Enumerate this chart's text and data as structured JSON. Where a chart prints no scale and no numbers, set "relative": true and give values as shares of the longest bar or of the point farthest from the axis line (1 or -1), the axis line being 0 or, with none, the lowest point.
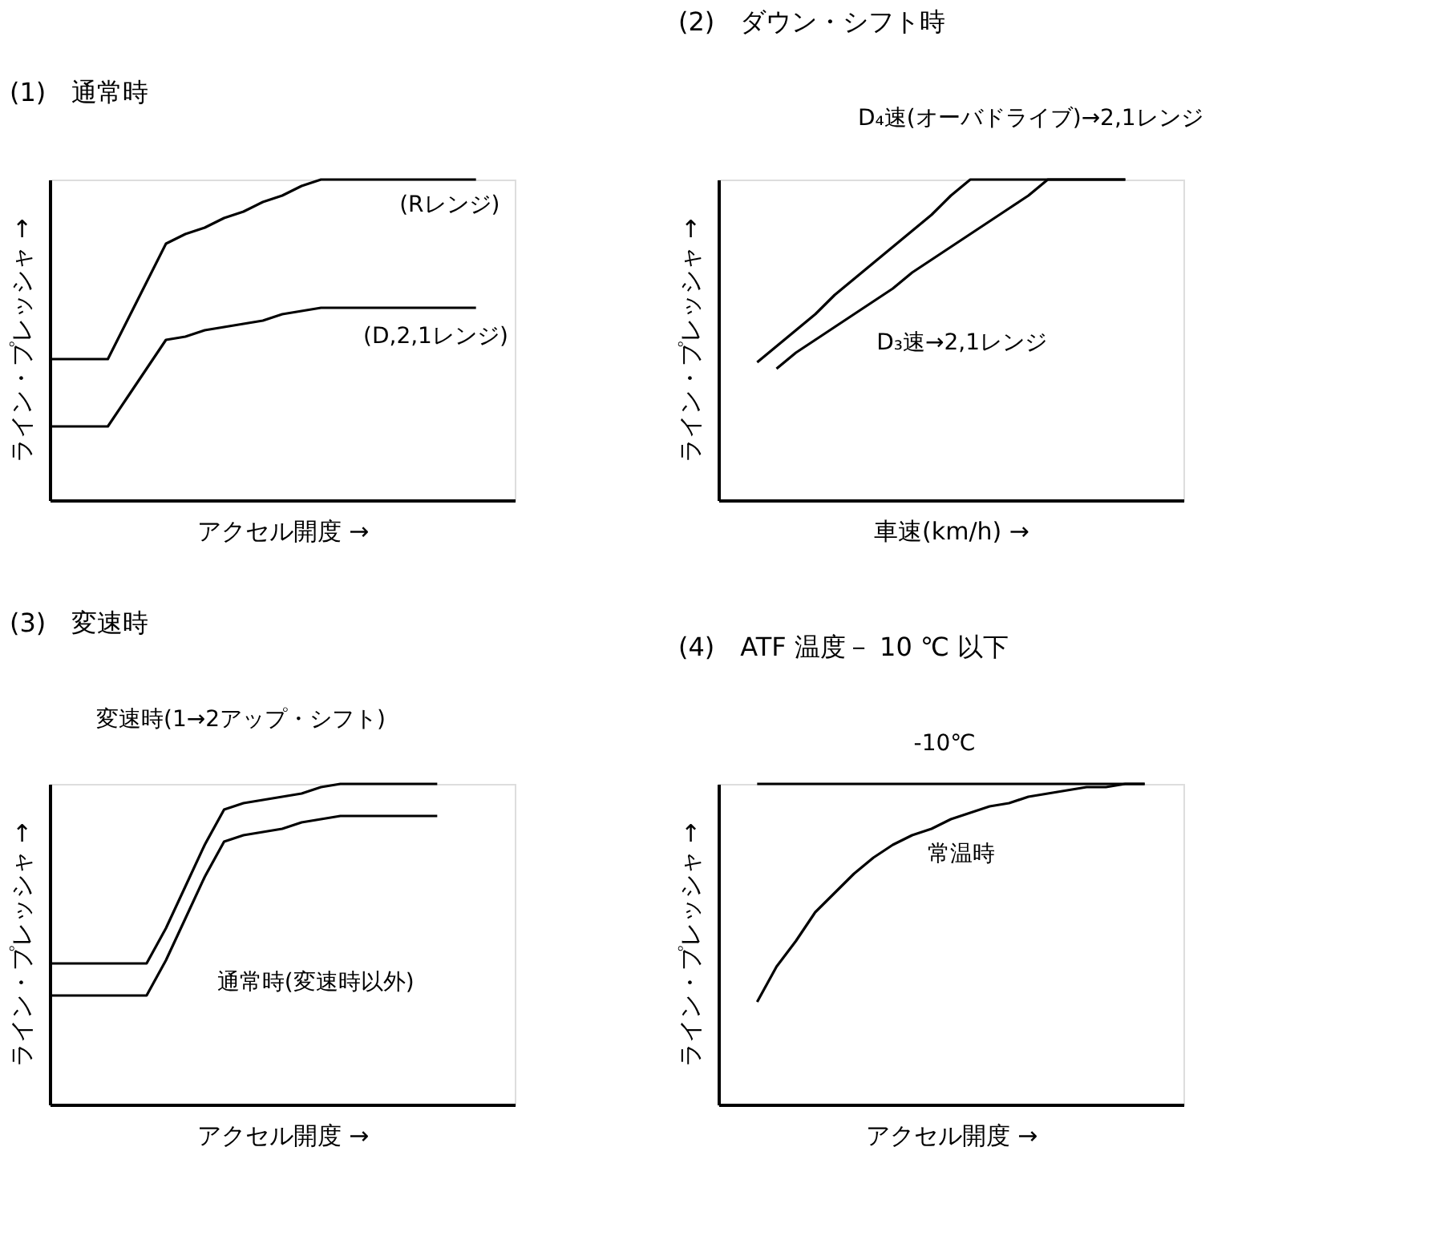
{
  "chart_data": [
    {
      "type": "line",
      "title": "(1)　通常時",
      "xlabel": "アクセル開度 →",
      "ylabel": "ライン・プレッシャ →",
      "relative": true,
      "tick_labels": false,
      "categories": [
        null,
        null,
        null,
        null,
        null,
        null,
        null,
        null,
        null,
        null,
        null,
        null,
        null,
        null,
        null,
        null,
        null,
        null,
        null,
        null,
        null,
        null,
        null,
        null,
        null
      ],
      "series": [
        {
          "name": "(Rレンジ)",
          "color": "#000000",
          "values": [
            0.44,
            0.44,
            0.44,
            0.44,
            0.56,
            0.68,
            0.8,
            0.83,
            0.85,
            0.88,
            0.9,
            0.93,
            0.95,
            0.98,
            1,
            1,
            1,
            1,
            1,
            1,
            1,
            1,
            1,
            null,
            null
          ]
        },
        {
          "name": "(D,2,1レンジ)",
          "color": "#000000",
          "values": [
            0.23,
            0.23,
            0.23,
            0.23,
            0.32,
            0.41,
            0.5,
            0.51,
            0.53,
            0.54,
            0.55,
            0.56,
            0.58,
            0.59,
            0.6,
            0.6,
            0.6,
            0.6,
            0.6,
            0.6,
            0.6,
            0.6,
            0.6,
            null,
            null
          ]
        }
      ]
    },
    {
      "type": "line",
      "title": "(2)　ダウン・シフト時",
      "xlabel": "車速(km/h) →",
      "ylabel": "ライン・プレッシャ →",
      "relative": true,
      "tick_labels": false,
      "categories": [
        null,
        null,
        null,
        null,
        null,
        null,
        null,
        null,
        null,
        null,
        null,
        null,
        null,
        null,
        null,
        null,
        null,
        null,
        null,
        null,
        null,
        null,
        null,
        null,
        null
      ],
      "series": [
        {
          "name": "D₄速(オーバドライブ)→2,1レンジ",
          "color": "#000000",
          "values": [
            null,
            null,
            0.43,
            0.48,
            0.53,
            0.58,
            0.64,
            0.69,
            0.74,
            0.79,
            0.84,
            0.89,
            0.95,
            1,
            1,
            1,
            1,
            1,
            1,
            1,
            1,
            1,
            null,
            null,
            null
          ]
        },
        {
          "name": "D₃速→2,1レンジ",
          "color": "#000000",
          "values": [
            null,
            null,
            null,
            0.41,
            0.46,
            0.5,
            0.54,
            0.58,
            0.62,
            0.66,
            0.71,
            0.75,
            0.79,
            0.83,
            0.87,
            0.91,
            0.95,
            1,
            1,
            1,
            1,
            1,
            null,
            null,
            null
          ]
        }
      ]
    },
    {
      "type": "line",
      "title": "(3)　変速時",
      "xlabel": "アクセル開度 →",
      "ylabel": "ライン・プレッシャ →",
      "relative": true,
      "tick_labels": false,
      "categories": [
        null,
        null,
        null,
        null,
        null,
        null,
        null,
        null,
        null,
        null,
        null,
        null,
        null,
        null,
        null,
        null,
        null,
        null,
        null,
        null,
        null,
        null,
        null,
        null,
        null
      ],
      "series": [
        {
          "name": "変速時(1→2アップ・シフト)",
          "color": "#000000",
          "values": [
            0.44,
            0.44,
            0.44,
            0.44,
            0.44,
            0.44,
            0.55,
            0.68,
            0.81,
            0.92,
            0.94,
            0.95,
            0.96,
            0.97,
            0.99,
            1,
            1,
            1,
            1,
            1,
            1,
            null,
            null,
            null,
            null
          ]
        },
        {
          "name": "通常時(変速時以外)",
          "color": "#000000",
          "values": [
            0.34,
            0.34,
            0.34,
            0.34,
            0.34,
            0.34,
            0.45,
            0.58,
            0.71,
            0.82,
            0.84,
            0.85,
            0.86,
            0.88,
            0.89,
            0.9,
            0.9,
            0.9,
            0.9,
            0.9,
            0.9,
            null,
            null,
            null,
            null
          ]
        }
      ]
    },
    {
      "type": "line",
      "title": "(4)　ATF 温度－ 10 ℃ 以下",
      "xlabel": "アクセル開度 →",
      "ylabel": "ライン・プレッシャ →",
      "relative": true,
      "tick_labels": false,
      "categories": [
        null,
        null,
        null,
        null,
        null,
        null,
        null,
        null,
        null,
        null,
        null,
        null,
        null,
        null,
        null,
        null,
        null,
        null,
        null,
        null,
        null,
        null,
        null,
        null,
        null
      ],
      "series": [
        {
          "name": "-10℃",
          "color": "#000000",
          "values": [
            null,
            null,
            1,
            1,
            1,
            1,
            1,
            1,
            1,
            1,
            1,
            1,
            1,
            1,
            1,
            1,
            1,
            1,
            1,
            1,
            1,
            1,
            1,
            null,
            null
          ]
        },
        {
          "name": "常温時",
          "color": "#000000",
          "values": [
            null,
            null,
            0.32,
            0.43,
            0.51,
            0.6,
            0.66,
            0.72,
            0.77,
            0.81,
            0.84,
            0.86,
            0.89,
            0.91,
            0.93,
            0.94,
            0.96,
            0.97,
            0.98,
            0.99,
            0.99,
            1,
            1,
            null,
            null
          ]
        }
      ]
    }
  ]
}
